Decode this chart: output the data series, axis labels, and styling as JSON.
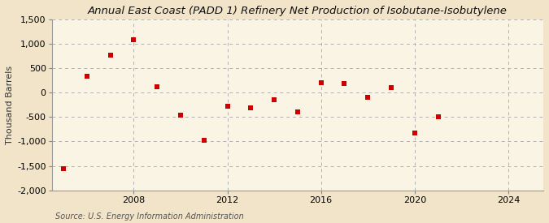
{
  "title": "Annual East Coast (PADD 1) Refinery Net Production of Isobutane-Isobutylene",
  "ylabel": "Thousand Barrels",
  "source": "Source: U.S. Energy Information Administration",
  "background_color": "#f2e4c8",
  "plot_background_color": "#faf4e4",
  "years": [
    2005,
    2006,
    2007,
    2008,
    2009,
    2010,
    2011,
    2012,
    2013,
    2014,
    2015,
    2016,
    2017,
    2018,
    2019,
    2020,
    2021
  ],
  "values": [
    -1550,
    330,
    760,
    1080,
    120,
    -460,
    -970,
    -280,
    -310,
    -150,
    -390,
    200,
    190,
    -100,
    110,
    -820,
    -490
  ],
  "marker_color": "#cc0000",
  "marker_size": 5,
  "ylim": [
    -2000,
    1500
  ],
  "yticks": [
    -2000,
    -1500,
    -1000,
    -500,
    0,
    500,
    1000,
    1500
  ],
  "xlim": [
    2004.5,
    2025.5
  ],
  "xticks": [
    2008,
    2012,
    2016,
    2020,
    2024
  ],
  "grid_color": "#b0b0b0",
  "title_fontsize": 9.5,
  "axis_fontsize": 8,
  "tick_fontsize": 8,
  "source_fontsize": 7
}
